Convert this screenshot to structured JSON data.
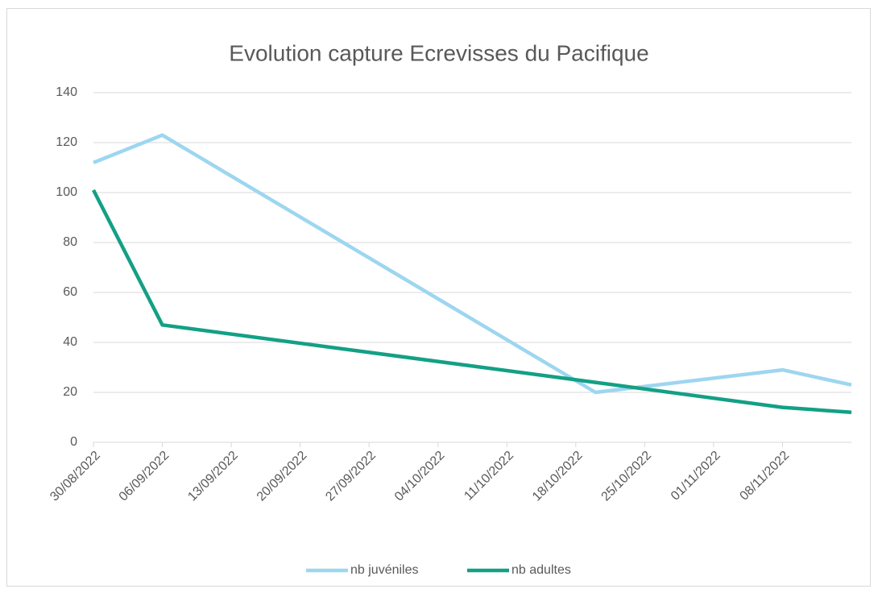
{
  "chart_data": {
    "type": "line",
    "title": "Evolution capture Ecrevisses du Pacifique",
    "x": [
      "2022-08-30",
      "2022-09-06",
      "2022-10-20",
      "2022-11-08",
      "2022-11-15"
    ],
    "series": [
      {
        "name": "nb juvéniles",
        "color": "#9dd6f0",
        "values": [
          112,
          123,
          20,
          29,
          23
        ]
      },
      {
        "name": "nb adultes",
        "color": "#13a085",
        "values": [
          101,
          47,
          24,
          14,
          12
        ]
      }
    ],
    "xlim": [
      "2022-08-30",
      "2022-11-15"
    ],
    "xticks": [
      {
        "value": "2022-08-30",
        "label": "30/08/2022"
      },
      {
        "value": "2022-09-06",
        "label": "06/09/2022"
      },
      {
        "value": "2022-09-13",
        "label": "13/09/2022"
      },
      {
        "value": "2022-09-20",
        "label": "20/09/2022"
      },
      {
        "value": "2022-09-27",
        "label": "27/09/2022"
      },
      {
        "value": "2022-10-04",
        "label": "04/10/2022"
      },
      {
        "value": "2022-10-11",
        "label": "11/10/2022"
      },
      {
        "value": "2022-10-18",
        "label": "18/10/2022"
      },
      {
        "value": "2022-10-25",
        "label": "25/10/2022"
      },
      {
        "value": "2022-11-01",
        "label": "01/11/2022"
      },
      {
        "value": "2022-11-08",
        "label": "08/11/2022"
      }
    ],
    "ylim": [
      0,
      140
    ],
    "yticks": [
      0,
      20,
      40,
      60,
      80,
      100,
      120,
      140
    ],
    "grid": true,
    "legend": "bottom"
  }
}
